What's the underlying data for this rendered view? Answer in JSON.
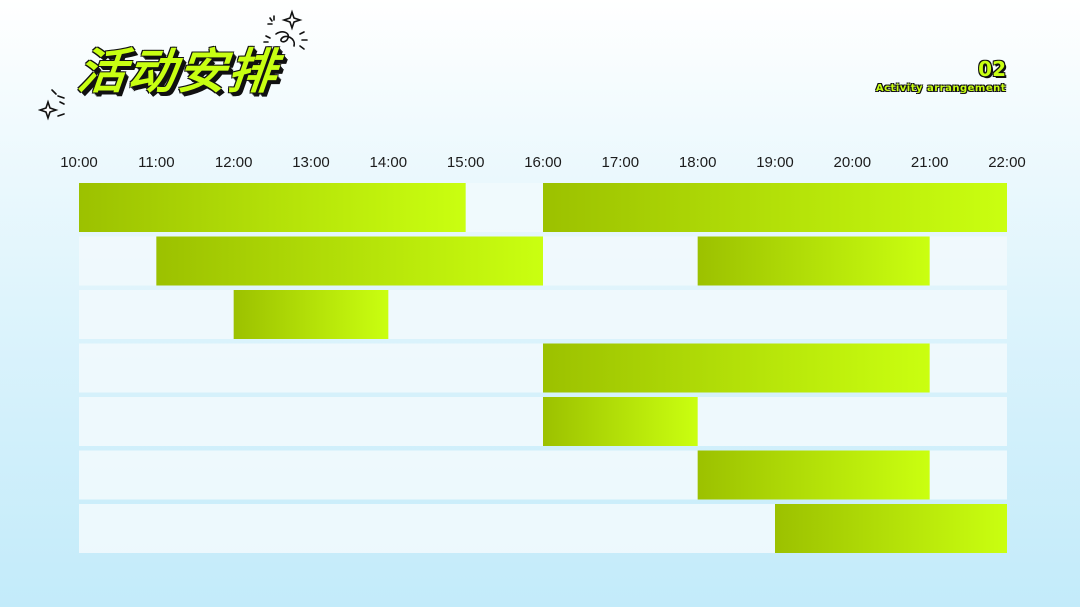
{
  "header": {
    "title": "活动安排",
    "section_number": "02",
    "section_subtitle": "Activity arrangement"
  },
  "colors": {
    "bar_start": "#9cc100",
    "bar_end": "#caff10",
    "row_background": "#f1fafd",
    "title_fill": "#c8ff12",
    "outline": "#111111"
  },
  "chart_data": {
    "type": "gantt",
    "x_ticks": [
      "10:00",
      "11:00",
      "12:00",
      "13:00",
      "14:00",
      "15:00",
      "16:00",
      "17:00",
      "18:00",
      "19:00",
      "20:00",
      "21:00",
      "22:00"
    ],
    "xlim": [
      10,
      22
    ],
    "row_count": 7,
    "grid": false,
    "legend": "none",
    "bars": [
      {
        "row": 1,
        "start": 10,
        "end": 15
      },
      {
        "row": 1,
        "start": 16,
        "end": 22
      },
      {
        "row": 2,
        "start": 11,
        "end": 16
      },
      {
        "row": 2,
        "start": 18,
        "end": 21
      },
      {
        "row": 3,
        "start": 12,
        "end": 14
      },
      {
        "row": 4,
        "start": 16,
        "end": 21
      },
      {
        "row": 5,
        "start": 16,
        "end": 18
      },
      {
        "row": 6,
        "start": 18,
        "end": 21
      },
      {
        "row": 7,
        "start": 19,
        "end": 22
      }
    ]
  }
}
